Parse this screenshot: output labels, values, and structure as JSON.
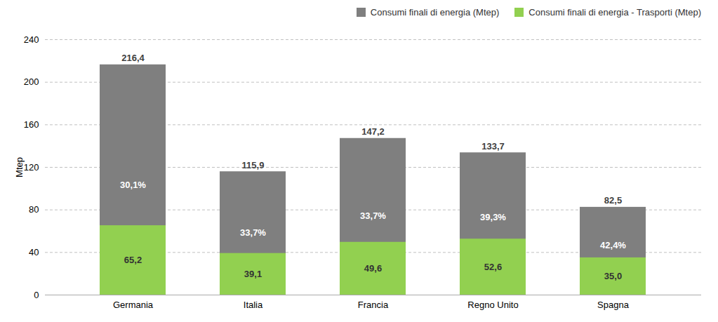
{
  "chart_data": {
    "type": "bar",
    "categories": [
      "Germania",
      "Italia",
      "Francia",
      "Regno Unito",
      "Spagna"
    ],
    "series": [
      {
        "name": "Consumi finali di energia (Mtep)",
        "color": "#7f7f7f",
        "values": [
          216.4,
          115.9,
          147.2,
          133.7,
          82.5
        ],
        "value_labels": [
          "216,4",
          "115,9",
          "147,2",
          "133,7",
          "82,5"
        ]
      },
      {
        "name": "Consumi finali di energia - Trasporti (Mtep)",
        "color": "#92d050",
        "values": [
          65.2,
          39.1,
          49.6,
          52.6,
          35.0
        ],
        "value_labels": [
          "65,2",
          "39,1",
          "49,6",
          "52,6",
          "35,0"
        ]
      }
    ],
    "shares": [
      30.1,
      33.7,
      33.7,
      39.3,
      42.4
    ],
    "share_labels": [
      "30,1%",
      "33,7%",
      "33,7%",
      "39,3%",
      "42,4%"
    ],
    "ylabel": "Mtep",
    "ylim": [
      0,
      240
    ],
    "yticks": [
      0,
      40,
      80,
      120,
      160,
      200,
      240
    ],
    "grid": true,
    "data_labels": true,
    "legend": "upper right"
  }
}
